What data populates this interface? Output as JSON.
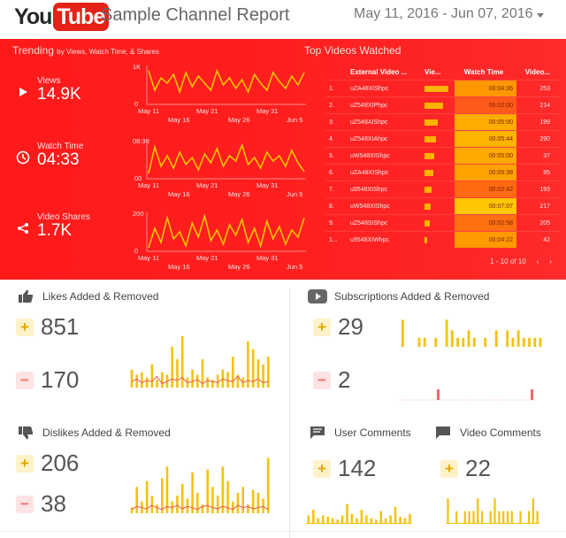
{
  "header": {
    "logo_you": "You",
    "logo_tube": "Tube",
    "title": "Sample Channel Report",
    "date_range": "May 11, 2016 - Jun 07, 2016"
  },
  "trending": {
    "title": "Trending",
    "subtitle": "by Views, Watch Time, & Shares",
    "metrics": [
      {
        "label": "Views",
        "value": "14.9K",
        "icon": "play-icon"
      },
      {
        "label": "Watch Time",
        "value": "04:33",
        "icon": "clock-icon"
      },
      {
        "label": "Video Shares",
        "value": "1.7K",
        "icon": "share-icon"
      }
    ],
    "x_top_ticks": [
      "May 11",
      "May 21",
      "May 31"
    ],
    "x_bottom_ticks": [
      "May 16",
      "May 26",
      "Jun 5"
    ],
    "charts": [
      {
        "ymax_label": "1K",
        "ymin_label": "0",
        "values": [
          0.9,
          0.35,
          0.7,
          0.55,
          0.8,
          0.3,
          0.85,
          0.45,
          0.75,
          0.55,
          0.35,
          0.9,
          0.5,
          0.7,
          0.4,
          0.65,
          0.3,
          0.8,
          0.55,
          0.35,
          0.85,
          0.6,
          0.4,
          0.75,
          0.5,
          0.85
        ]
      },
      {
        "ymax_label": "08:30",
        "ymin_label": "00",
        "values": [
          0.1,
          0.85,
          0.3,
          0.6,
          0.25,
          0.7,
          0.35,
          0.55,
          0.2,
          0.65,
          0.4,
          0.8,
          0.3,
          0.6,
          0.45,
          0.9,
          0.35,
          0.55,
          0.25,
          0.7,
          0.45,
          0.6,
          0.3,
          0.75,
          0.4,
          0.15
        ]
      },
      {
        "ymax_label": "200",
        "ymin_label": "0",
        "values": [
          0.05,
          0.6,
          0.2,
          0.9,
          0.3,
          0.5,
          0.1,
          0.75,
          0.35,
          0.95,
          0.25,
          0.55,
          0.15,
          0.7,
          0.4,
          0.85,
          0.2,
          0.6,
          0.1,
          0.8,
          0.3,
          0.65,
          0.15,
          0.55,
          0.35,
          0.9
        ]
      }
    ]
  },
  "top_videos": {
    "title": "Top Videos Watched",
    "columns": [
      "External Video ...",
      "Vie...",
      "Watch Time",
      "Video..."
    ],
    "rows": [
      {
        "idx": "1.",
        "id": "uZA48XIShpc",
        "views_frac": 0.95,
        "time": "00:04:36",
        "shares": "253",
        "heat": "#ff9800"
      },
      {
        "idx": "2.",
        "id": "uZ548XIPhpc",
        "views_frac": 0.75,
        "time": "00:02:00",
        "shares": "214",
        "heat": "#ff5a1a"
      },
      {
        "idx": "3.",
        "id": "uZ548AIShpc",
        "views_frac": 0.55,
        "time": "00:05:00",
        "shares": "199",
        "heat": "#ffac00"
      },
      {
        "idx": "4.",
        "id": "uZ548XIAhpc",
        "views_frac": 0.45,
        "time": "00:05:44",
        "shares": "290",
        "heat": "#ffb400"
      },
      {
        "idx": "5.",
        "id": "uW548XIShpc",
        "views_frac": 0.4,
        "time": "00:05:00",
        "shares": "37",
        "heat": "#ffa900"
      },
      {
        "idx": "6.",
        "id": "uZA48XIShpc",
        "views_frac": 0.35,
        "time": "00:05:38",
        "shares": "95",
        "heat": "#ffa200"
      },
      {
        "idx": "7.",
        "id": "u9548XIShpc",
        "views_frac": 0.3,
        "time": "00:02:42",
        "shares": "193",
        "heat": "#ff6a10"
      },
      {
        "idx": "8.",
        "id": "uW548XIShpc",
        "views_frac": 0.25,
        "time": "00:07:07",
        "shares": "217",
        "heat": "#ffc800"
      },
      {
        "idx": "9.",
        "id": "uZ548SIShpc",
        "views_frac": 0.2,
        "time": "00:02:58",
        "shares": "205",
        "heat": "#ff7010"
      },
      {
        "idx": "1...",
        "id": "u9548XIWhpc",
        "views_frac": 0.1,
        "time": "00:04:22",
        "shares": "42",
        "heat": "#ff9a00"
      }
    ],
    "pagination": "1 - 10 of 10"
  },
  "likes": {
    "title": "Likes Added & Removed",
    "added": "851",
    "removed": "170",
    "added_bars": [
      0.35,
      0.25,
      0.3,
      0.2,
      0.45,
      0.15,
      0.3,
      0.25,
      0.8,
      0.55,
      1.0,
      0.2,
      0.35,
      0.25,
      0.55,
      0.2,
      0.15,
      0.25,
      0.35,
      0.3,
      0.6,
      0.25,
      0.2,
      0.9,
      0.75,
      0.55,
      0.45,
      0.6
    ],
    "removed_bars": [
      0.1,
      0.15,
      0.08,
      0.12,
      0.1,
      0.2,
      0.06,
      0.1,
      0.15,
      0.12,
      0.18,
      0.08,
      0.1,
      0.14,
      0.06,
      0.12,
      0.1,
      0.08,
      0.15,
      0.12,
      0.1,
      0.2,
      0.08,
      0.12,
      0.1,
      0.15,
      0.08,
      0.1
    ]
  },
  "subscriptions": {
    "title": "Subscriptions Added & Removed",
    "added": "29",
    "removed": "2",
    "added_bars": [
      0.9,
      0,
      0,
      0.3,
      0.3,
      0,
      0.3,
      0,
      0.9,
      0.55,
      0.3,
      0.3,
      0.55,
      0.3,
      0,
      0.3,
      0,
      0.55,
      0,
      0.55,
      0.3,
      0.55,
      0.3,
      0.3,
      0.3,
      0.3
    ],
    "removed_bars": [
      0,
      0,
      0,
      0,
      0,
      0,
      0,
      0,
      0,
      0,
      0,
      0,
      0,
      0,
      0,
      0,
      0,
      0,
      0,
      0,
      0,
      0,
      0,
      0,
      0,
      0
    ]
  },
  "dislikes": {
    "title": "Dislikes Added & Removed",
    "added": "206",
    "removed": "38",
    "added_bars": [
      0.1,
      0.45,
      0.2,
      0.55,
      0.3,
      0.15,
      0.6,
      0.8,
      0.2,
      0.3,
      0.5,
      0.25,
      0.7,
      0.35,
      0.15,
      0.75,
      0.45,
      0.3,
      0.8,
      0.55,
      0.2,
      0.35,
      0.45,
      0.15,
      0.4,
      0.35,
      0.25,
      0.95
    ],
    "removed_bars": [
      0.05,
      0.1,
      0.08,
      0.06,
      0.12,
      0.08,
      0.05,
      0.1,
      0.08,
      0.12,
      0.06,
      0.1,
      0.08,
      0.05,
      0.1,
      0.12,
      0.08,
      0.06,
      0.1,
      0.08,
      0.05,
      0.12,
      0.08,
      0.1,
      0.06,
      0.08,
      0.1,
      0.05
    ]
  },
  "user_comments": {
    "title": "User Comments",
    "added": "142",
    "bars": [
      0.3,
      0.5,
      0.2,
      0.3,
      0.25,
      0.2,
      0.15,
      0.3,
      0.7,
      0.35,
      0.2,
      0.5,
      0.3,
      0.2,
      0.15,
      0.45,
      0.2,
      0.3,
      0.6,
      0.25,
      0.2,
      0.35
    ]
  },
  "video_comments": {
    "title": "Video Comments",
    "added": "22",
    "bars": [
      0.9,
      0,
      0.45,
      0,
      0.45,
      0.45,
      0.45,
      0.9,
      0.45,
      0,
      0.45,
      0.9,
      0.45,
      0.45,
      0.45,
      0.45,
      0,
      0.45,
      0,
      0.45,
      0.9,
      0.45
    ]
  }
}
